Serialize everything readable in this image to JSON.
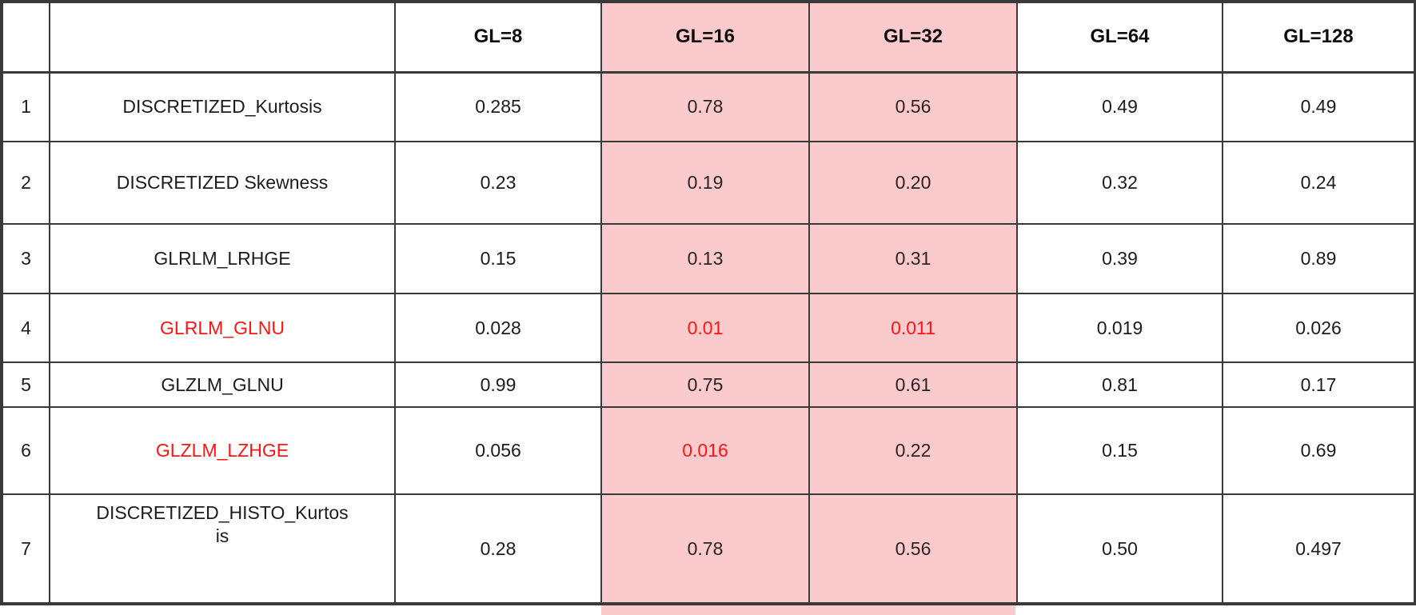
{
  "chart_data": {
    "type": "table",
    "columns": [
      "",
      "",
      "GL=8",
      "GL=16",
      "GL=32",
      "GL=64",
      "GL=128"
    ],
    "highlighted_columns": [
      "GL=16",
      "GL=32"
    ],
    "rows": [
      {
        "num": "1",
        "feature": "DISCRETIZED_Kurtosis",
        "feature_red": false,
        "values": [
          "0.285",
          "0.78",
          "0.56",
          "0.49",
          "0.49"
        ],
        "red_value_cols": []
      },
      {
        "num": "2",
        "feature": "DISCRETIZED Skewness",
        "feature_red": false,
        "values": [
          "0.23",
          "0.19",
          "0.20",
          "0.32",
          "0.24"
        ],
        "red_value_cols": []
      },
      {
        "num": "3",
        "feature": "GLRLM_LRHGE",
        "feature_red": false,
        "values": [
          "0.15",
          "0.13",
          "0.31",
          "0.39",
          "0.89"
        ],
        "red_value_cols": []
      },
      {
        "num": "4",
        "feature": "GLRLM_GLNU",
        "feature_red": true,
        "values": [
          "0.028",
          "0.01",
          "0.011",
          "0.019",
          "0.026"
        ],
        "red_value_cols": [
          "GL=16",
          "GL=32"
        ]
      },
      {
        "num": "5",
        "feature": "GLZLM_GLNU",
        "feature_red": false,
        "values": [
          "0.99",
          "0.75",
          "0.61",
          "0.81",
          "0.17"
        ],
        "red_value_cols": []
      },
      {
        "num": "6",
        "feature": "GLZLM_LZHGE",
        "feature_red": true,
        "values": [
          "0.056",
          "0.016",
          "0.22",
          "0.15",
          "0.69"
        ],
        "red_value_cols": [
          "GL=16"
        ]
      },
      {
        "num": "7",
        "feature": "DISCRETIZED_HISTO_Kurtosis",
        "feature_red": false,
        "values": [
          "0.28",
          "0.78",
          "0.56",
          "0.50",
          "0.497"
        ],
        "red_value_cols": []
      }
    ]
  },
  "colors": {
    "highlight_pink": "#FBCACD",
    "red_text": "#FF1414",
    "border": "#3A3A3A"
  }
}
